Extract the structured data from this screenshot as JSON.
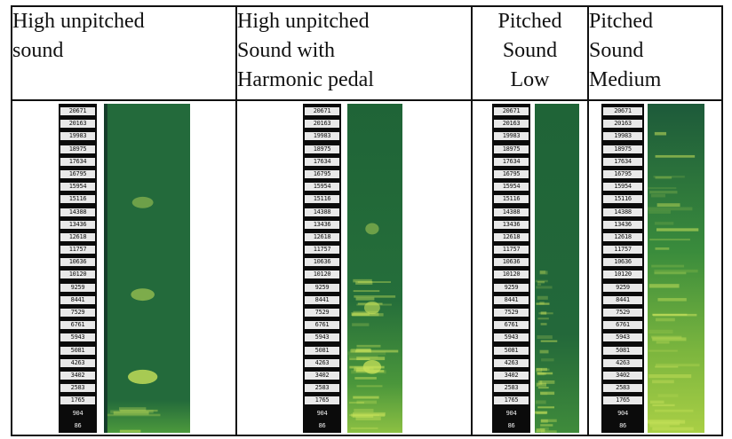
{
  "columns": [
    {
      "title_lines": [
        "High unpitched",
        "sound"
      ],
      "align": "left",
      "spec_style": "flat",
      "bright_spots": [
        {
          "level": 0.3,
          "strength": 0.45
        },
        {
          "level": 0.58,
          "strength": 0.55
        },
        {
          "level": 0.83,
          "strength": 0.8
        }
      ]
    },
    {
      "title_lines": [
        "High unpitched",
        "Sound with",
        "Harmonic pedal"
      ],
      "align": "left",
      "spec_style": "banded-low",
      "bright_spots": [
        {
          "level": 0.38,
          "strength": 0.45
        },
        {
          "level": 0.62,
          "strength": 0.6
        },
        {
          "level": 0.8,
          "strength": 0.75
        }
      ]
    },
    {
      "title_lines": [
        "Pitched",
        "Sound",
        "Low"
      ],
      "align": "center",
      "spec_style": "edge-lit",
      "bright_spots": []
    },
    {
      "title_lines": [
        "Pitched",
        "Sound",
        "Medium"
      ],
      "align": "left",
      "spec_style": "rich",
      "bright_spots": []
    }
  ],
  "frequency_ticks": [
    "20671",
    "20163",
    "19983",
    "18975",
    "17634",
    "16795",
    "15954",
    "15116",
    "14388",
    "13436",
    "12618",
    "11757",
    "10636",
    "10120",
    "9259",
    "8441",
    "7529",
    "6761",
    "5943",
    "5081",
    "4263",
    "3402",
    "2583",
    "1765",
    "904",
    "86"
  ],
  "colors": {
    "background": "#ffffff",
    "border": "#111111",
    "axis": "#0b0b0b",
    "spectrogram_base": "#236a3b",
    "spectrogram_bright": "#c8e25a"
  }
}
